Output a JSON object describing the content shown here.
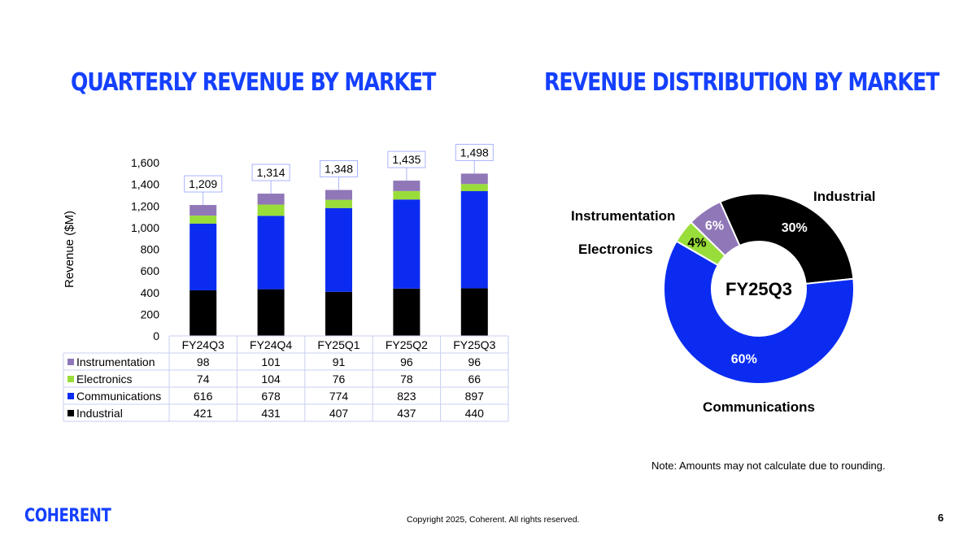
{
  "titles": {
    "left": "QUARTERLY REVENUE BY MARKET",
    "right": "REVENUE DISTRIBUTION BY MARKET"
  },
  "colors": {
    "accent": "#1540ff",
    "Instrumentation": "#9077b8",
    "Electronics": "#99dd3a",
    "Communications": "#0b2cf0",
    "Industrial": "#000000"
  },
  "chart_data": [
    {
      "type": "bar",
      "stacked": true,
      "title": "Quarterly Revenue by Market",
      "ylabel": "Revenue ($M)",
      "ylim": [
        0,
        1600
      ],
      "yticks": [
        "0",
        "200",
        "400",
        "600",
        "800",
        "1,000",
        "1,200",
        "1,400",
        "1,600"
      ],
      "categories": [
        "FY24Q3",
        "FY24Q4",
        "FY25Q1",
        "FY25Q2",
        "FY25Q3"
      ],
      "totals": [
        "1,209",
        "1,314",
        "1,348",
        "1,435",
        "1,498"
      ],
      "series": [
        {
          "name": "Instrumentation",
          "values": [
            98,
            101,
            91,
            96,
            96
          ]
        },
        {
          "name": "Electronics",
          "values": [
            74,
            104,
            76,
            78,
            66
          ]
        },
        {
          "name": "Communications",
          "values": [
            616,
            678,
            774,
            823,
            897
          ]
        },
        {
          "name": "Industrial",
          "values": [
            421,
            431,
            407,
            437,
            440
          ]
        }
      ]
    },
    {
      "type": "pie",
      "donut": true,
      "title": "Revenue Distribution by Market",
      "center_label": "FY25Q3",
      "slices": [
        {
          "name": "Industrial",
          "value": 30,
          "label": "30%"
        },
        {
          "name": "Communications",
          "value": 60,
          "label": "60%"
        },
        {
          "name": "Electronics",
          "value": 4,
          "label": "4%"
        },
        {
          "name": "Instrumentation",
          "value": 6,
          "label": "6%"
        }
      ]
    }
  ],
  "note": "Note: Amounts may not calculate due to rounding.",
  "footer": {
    "copyright": "Copyright 2025, Coherent. All rights reserved.",
    "page_number": "6",
    "logo_text": "COHERENT"
  }
}
